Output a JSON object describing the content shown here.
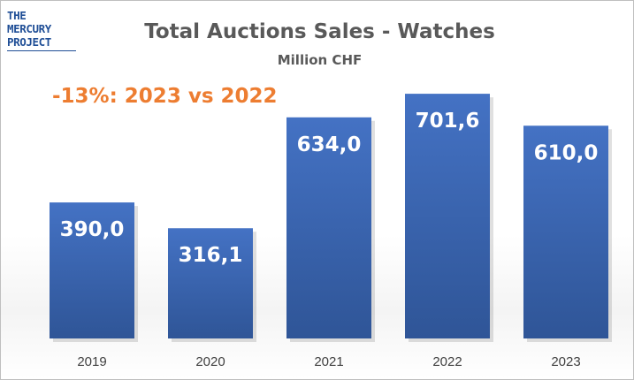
{
  "logo": {
    "lines": [
      "THE",
      "MERCURY",
      "PROJECT"
    ]
  },
  "annotation": "-13%: 2023 vs 2022",
  "colors": {
    "bar": "#4472c4",
    "bar_dark": "#2f5597",
    "title": "#595959",
    "annotation": "#ed7d31",
    "logo": "#1f4e96"
  },
  "chart_data": {
    "type": "bar",
    "title": "Total Auctions Sales - Watches",
    "subtitle": "Million CHF",
    "categories": [
      "2019",
      "2020",
      "2021",
      "2022",
      "2023"
    ],
    "values": [
      390.0,
      316.1,
      634.0,
      701.6,
      610.0
    ],
    "data_labels": [
      "390,0",
      "316,1",
      "634,0",
      "701,6",
      "610,0"
    ],
    "xlabel": "",
    "ylabel": "",
    "ylim": [
      0,
      750
    ],
    "grid": false,
    "legend": "none"
  }
}
